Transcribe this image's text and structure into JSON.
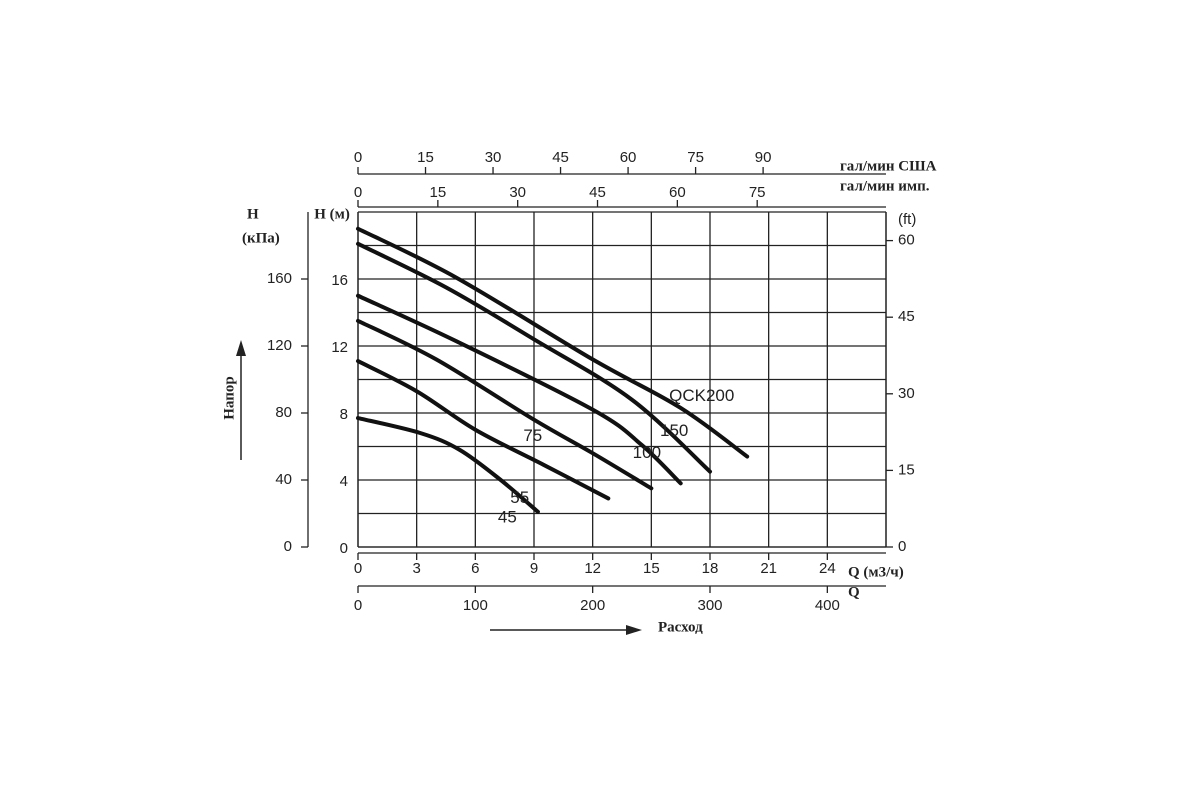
{
  "chart_data": {
    "type": "line",
    "x_label": "Q (м3/ч)",
    "y_label": "H (м)",
    "x_title": "Расход",
    "y_title": "Напор",
    "xlim": [
      0,
      27
    ],
    "xticks": [
      0,
      3,
      6,
      9,
      12,
      15,
      18,
      21,
      24
    ],
    "ylim": [
      0,
      20
    ],
    "yticks": [
      0,
      4,
      8,
      12,
      16
    ],
    "y_minor": [
      2,
      6,
      10,
      14,
      18,
      20
    ],
    "grid": true,
    "color": "#111111",
    "kpa_axis": {
      "label": [
        "H",
        "(кПа)"
      ],
      "lim": [
        0,
        200
      ],
      "ticks": [
        0,
        40,
        80,
        120,
        160
      ]
    },
    "ft_axis": {
      "label": "(ft)",
      "lim": [
        0,
        65.6
      ],
      "ticks": [
        0,
        15,
        30,
        45,
        60
      ]
    },
    "lmin_axis": {
      "label": "Q",
      "lim": [
        0,
        450
      ],
      "ticks": [
        0,
        100,
        200,
        300,
        400
      ]
    },
    "usgpm_axis": {
      "label": "гал/мин США",
      "lim": [
        0,
        117.3
      ],
      "ticks": [
        0,
        15,
        30,
        45,
        60,
        75,
        90
      ]
    },
    "impgpm_axis": {
      "label": "гал/мин имп.",
      "lim": [
        0,
        99.2
      ],
      "ticks": [
        0,
        15,
        30,
        45,
        60,
        75
      ]
    },
    "series": [
      {
        "name": "45",
        "x": [
          0,
          3.2,
          5.2,
          7.3,
          9.2
        ],
        "values": [
          7.7,
          6.8,
          5.8,
          4.0,
          2.1
        ]
      },
      {
        "name": "55",
        "x": [
          0,
          3,
          6,
          9.5,
          12.8
        ],
        "values": [
          11.1,
          9.3,
          7.0,
          4.9,
          2.9
        ]
      },
      {
        "name": "75",
        "x": [
          0,
          4,
          9,
          12,
          15
        ],
        "values": [
          13.5,
          11.2,
          7.6,
          5.6,
          3.5
        ]
      },
      {
        "name": "100",
        "x": [
          0,
          5,
          12,
          14.5,
          16.5
        ],
        "values": [
          15.0,
          12.3,
          8.2,
          6.1,
          3.8
        ]
      },
      {
        "name": "150",
        "x": [
          0,
          4.5,
          9,
          14,
          18
        ],
        "values": [
          18.1,
          15.5,
          12.4,
          8.8,
          4.5
        ]
      },
      {
        "name": "QCK200",
        "x": [
          0,
          5,
          12,
          16.5,
          19.9
        ],
        "values": [
          19.0,
          16.1,
          11.2,
          8.3,
          5.4
        ]
      }
    ]
  }
}
